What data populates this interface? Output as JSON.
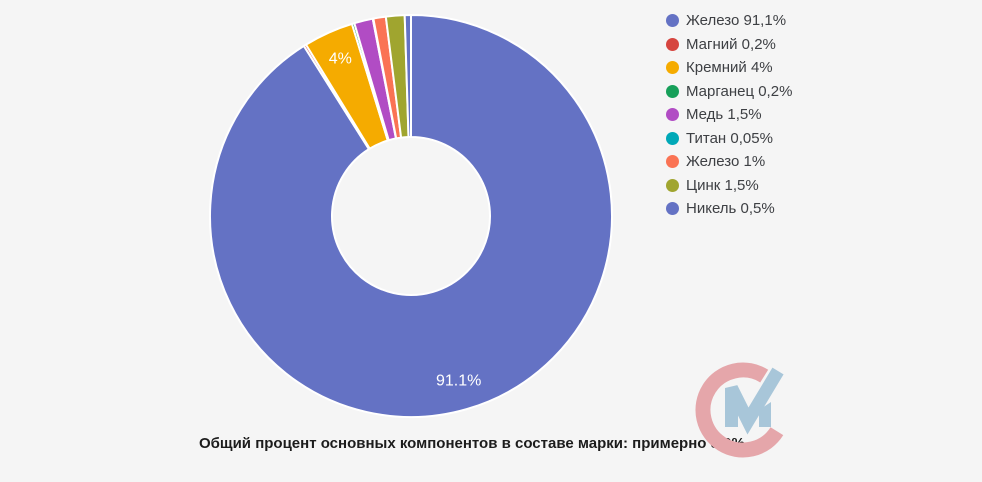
{
  "background_color": "#f5f5f5",
  "chart_data": {
    "type": "pie",
    "donut": true,
    "legend_position": "right",
    "start_angle_deg": 0,
    "caption": "Общий процент основных компонентов в составе марки: примерно 8,9%",
    "slice_border_color": "#ffffff",
    "slices": [
      {
        "name": "Железо",
        "value": 91.1,
        "legend_label": "Железо 91,1%",
        "slice_label": "91.1%",
        "color": "#6472c4"
      },
      {
        "name": "Магний",
        "value": 0.2,
        "legend_label": "Магний 0,2%",
        "slice_label": "",
        "color": "#d6453f"
      },
      {
        "name": "Кремний",
        "value": 4,
        "legend_label": "Кремний 4%",
        "slice_label": "4%",
        "color": "#f5ab00"
      },
      {
        "name": "Марганец",
        "value": 0.2,
        "legend_label": "Марганец 0,2%",
        "slice_label": "",
        "color": "#17a05a"
      },
      {
        "name": "Медь",
        "value": 1.5,
        "legend_label": "Медь 1,5%",
        "slice_label": "",
        "color": "#b14cc4"
      },
      {
        "name": "Титан",
        "value": 0.05,
        "legend_label": "Титан 0,05%",
        "slice_label": "",
        "color": "#00a8b7"
      },
      {
        "name": "Железо",
        "value": 1,
        "legend_label": "Железо 1%",
        "slice_label": "",
        "color": "#fa7354"
      },
      {
        "name": "Цинк",
        "value": 1.5,
        "legend_label": "Цинк 1,5%",
        "slice_label": "",
        "color": "#a0a52f"
      },
      {
        "name": "Никель",
        "value": 0.5,
        "legend_label": "Никель 0,5%",
        "slice_label": "",
        "color": "#6472c4"
      }
    ]
  },
  "logo": {
    "name": "CM watermark",
    "c_color": "#e5a6aa",
    "m_color": "#a8c6d9"
  }
}
